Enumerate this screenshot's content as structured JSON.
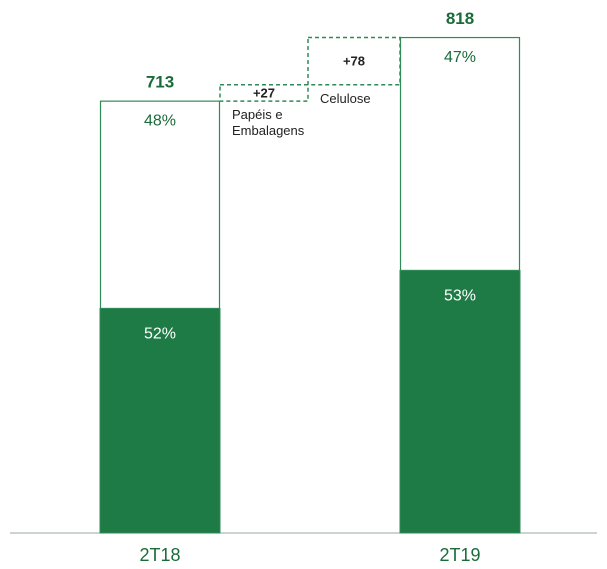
{
  "chart_data": {
    "type": "waterfall",
    "ylim": [
      0,
      880
    ],
    "bars": [
      {
        "category": "2T18",
        "total": 713,
        "shares": [
          52,
          48
        ],
        "share_labels": [
          "52%",
          "48%"
        ]
      },
      {
        "category": "2T19",
        "total": 818,
        "shares": [
          53,
          47
        ],
        "share_labels": [
          "53%",
          "47%"
        ]
      }
    ],
    "steps": [
      {
        "value": 27,
        "value_label": "+27",
        "name": "Papéis e Embalagens"
      },
      {
        "value": 78,
        "value_label": "+78",
        "name": "Celulose"
      }
    ],
    "colors": {
      "fill": "#1e7b46",
      "outline": "#2e8b57",
      "text": "#1b6b3a"
    }
  }
}
